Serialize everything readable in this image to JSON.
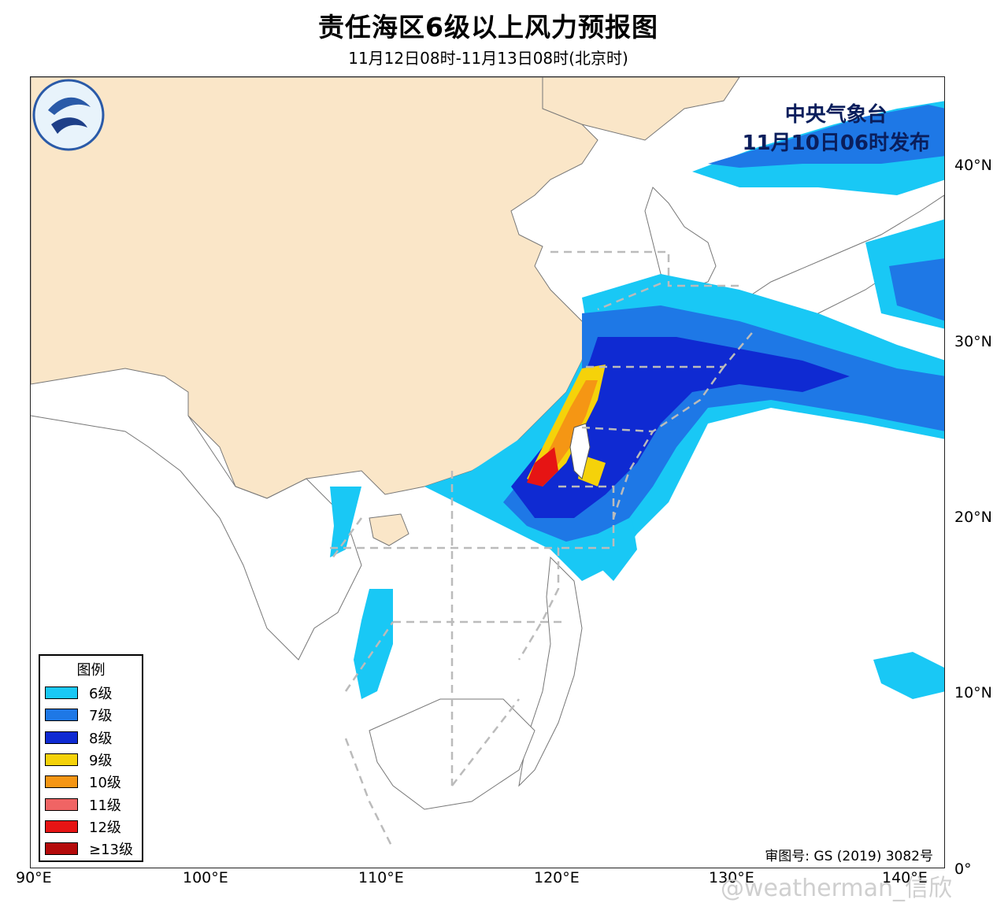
{
  "title": "责任海区6级以上风力预报图",
  "subtitle": "11月12日08时-11月13日08时(北京时)",
  "issuer": {
    "line1": "中央气象台",
    "line2": "11月10日06时发布"
  },
  "approval": "审图号: GS (2019) 3082号",
  "watermark": "@weatherman_信欣",
  "lat_labels": [
    "40°N",
    "30°N",
    "20°N",
    "10°N",
    "0°"
  ],
  "lon_labels": [
    "90°E",
    "100°E",
    "110°E",
    "120°E",
    "130°E",
    "140°E"
  ],
  "legend": {
    "title": "图例",
    "items": [
      {
        "label": "6级",
        "color": "#19c8f5"
      },
      {
        "label": "7级",
        "color": "#1e78e6"
      },
      {
        "label": "8级",
        "color": "#0f2ad2"
      },
      {
        "label": "9级",
        "color": "#f5d20a"
      },
      {
        "label": "10级",
        "color": "#f59614"
      },
      {
        "label": "11级",
        "color": "#f06464"
      },
      {
        "label": "12级",
        "color": "#e61414"
      },
      {
        "label": "≥13级",
        "color": "#b40a0a"
      }
    ]
  },
  "colors": {
    "land_china": "#fae6c8",
    "sea": "#ffffff",
    "issuer_text": "#0a1e5c"
  }
}
